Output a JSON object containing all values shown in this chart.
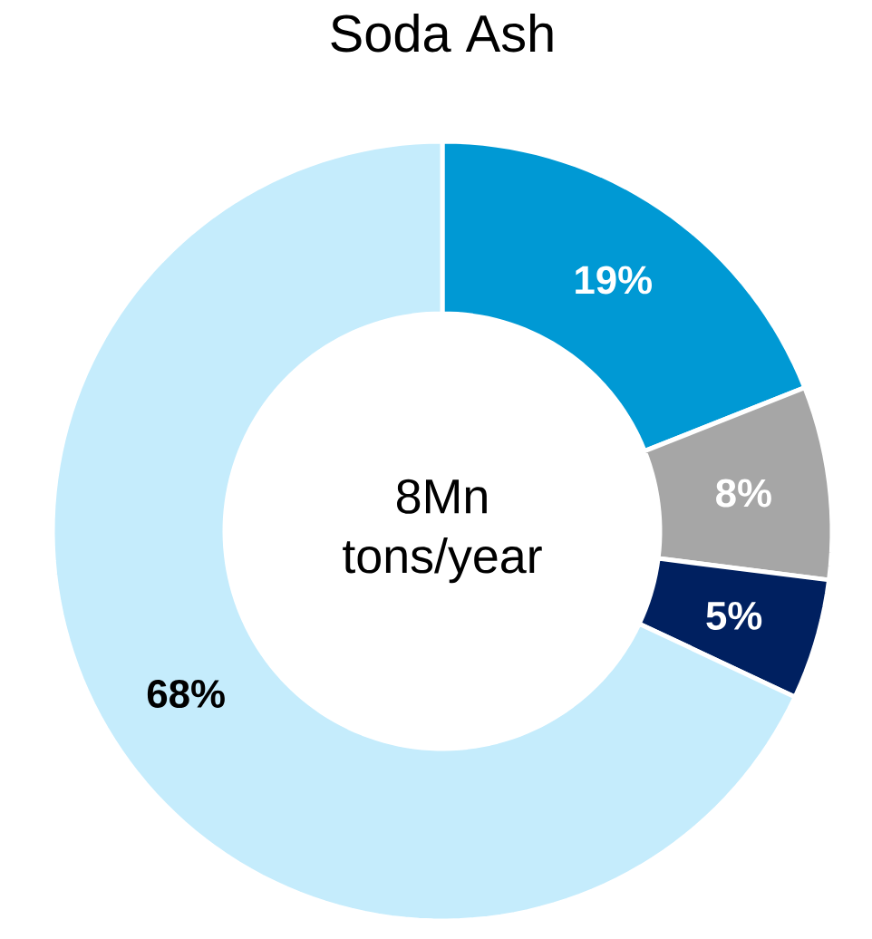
{
  "chart_data": {
    "type": "donut",
    "title": "Soda Ash",
    "categories": [
      null,
      null,
      null,
      null
    ],
    "values": [
      19,
      8,
      5,
      68
    ],
    "colors": [
      "#0099d4",
      "#a6a6a6",
      "#002060",
      "#c5ecfc"
    ],
    "value_labels": [
      "19%",
      "8%",
      "5%",
      "68%"
    ],
    "annotations": [
      "8Mn tons/year"
    ]
  }
}
